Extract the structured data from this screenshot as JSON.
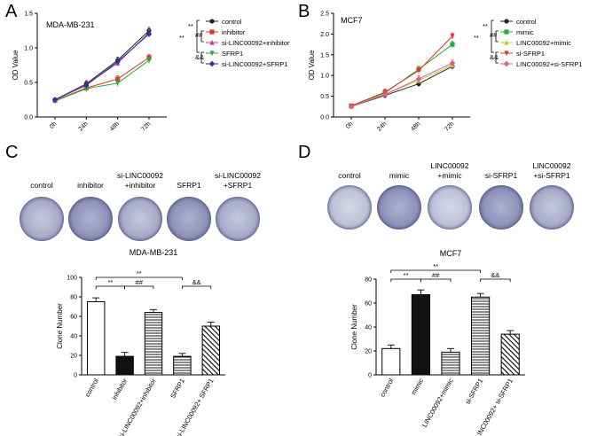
{
  "panels": {
    "A": {
      "letter": "A"
    },
    "B": {
      "letter": "B"
    },
    "C": {
      "letter": "C"
    },
    "D": {
      "letter": "D"
    }
  },
  "colony_images": {
    "C": [
      "control",
      "inhibitor",
      "si-LINC00092\n+inhibitor",
      "SFRP1",
      "si-LINC00092\n+SFRP1"
    ],
    "D": [
      "control",
      "mimic",
      "LINC00092\n+mimic",
      "si-SFRP1",
      "LINC00092\n+si-SFRP1"
    ]
  },
  "chart_data": [
    {
      "id": "A",
      "type": "line",
      "title": "MDA-MB-231",
      "xlabel": "",
      "ylabel": "OD Value",
      "categories": [
        "0h",
        "24h",
        "48h",
        "72h"
      ],
      "ylim": [
        0.0,
        1.5
      ],
      "yticks": [
        "0.0",
        "0.5",
        "1.0",
        "1.5"
      ],
      "series": [
        {
          "name": "control",
          "color": "#222222",
          "values": [
            0.25,
            0.48,
            0.82,
            1.25
          ]
        },
        {
          "name": "inhibitor",
          "color": "#e0352b",
          "values": [
            0.24,
            0.42,
            0.55,
            0.86
          ]
        },
        {
          "name": "si-LINC00092+inhibitor",
          "color": "#c0399f",
          "values": [
            0.25,
            0.47,
            0.78,
            1.22
          ]
        },
        {
          "name": "SFRP1",
          "color": "#2aa836",
          "values": [
            0.23,
            0.41,
            0.49,
            0.82
          ]
        },
        {
          "name": "si-LINC00092+SFRP1",
          "color": "#2c2f9c",
          "values": [
            0.25,
            0.46,
            0.8,
            1.2
          ]
        }
      ],
      "annotations": [
        "**",
        "##",
        "**",
        "&&"
      ]
    },
    {
      "id": "B",
      "type": "line",
      "title": "MCF7",
      "xlabel": "",
      "ylabel": "OD Value",
      "categories": [
        "0h",
        "24h",
        "48h",
        "72h"
      ],
      "ylim": [
        0.0,
        2.5
      ],
      "yticks": [
        "0.0",
        "0.5",
        "1.0",
        "1.5",
        "2.0",
        "2.5"
      ],
      "series": [
        {
          "name": "control",
          "color": "#222222",
          "values": [
            0.25,
            0.52,
            0.8,
            1.22
          ]
        },
        {
          "name": "mimic",
          "color": "#2aa836",
          "values": [
            0.26,
            0.58,
            1.15,
            1.75
          ]
        },
        {
          "name": "LINC00092+mimic",
          "color": "#b8cf3a",
          "values": [
            0.25,
            0.55,
            0.88,
            1.25
          ]
        },
        {
          "name": "si-SFRP1",
          "color": "#e0352b",
          "values": [
            0.27,
            0.6,
            1.12,
            1.95
          ]
        },
        {
          "name": "LINC00092+si-SFRP1",
          "color": "#e05a8e",
          "values": [
            0.25,
            0.54,
            0.92,
            1.3
          ]
        }
      ],
      "annotations": [
        "**",
        "##",
        "**",
        "&&"
      ]
    },
    {
      "id": "C",
      "type": "bar",
      "title": "MDA-MB-231",
      "xlabel": "",
      "ylabel": "Clone Number",
      "categories": [
        "control",
        "inhibitor",
        "si-LINC00092+inhibitor",
        "SFRP1",
        "si-LINC00092+ SFRP1"
      ],
      "values": [
        75,
        19,
        64,
        19,
        50
      ],
      "errors": [
        4,
        4,
        3,
        3,
        4
      ],
      "fills": [
        "white",
        "black",
        "hlines",
        "hlines",
        "diag"
      ],
      "ylim": [
        0,
        100
      ],
      "yticks": [
        "0",
        "20",
        "40",
        "60",
        "80",
        "100"
      ],
      "annotations": [
        "**",
        "**",
        "##",
        "&&"
      ]
    },
    {
      "id": "D",
      "type": "bar",
      "title": "MCF7",
      "xlabel": "",
      "ylabel": "Clone Number",
      "categories": [
        "control",
        "mimic",
        "LINC00092+mimic",
        "si-SFRP1",
        "LINC00092+ si-SFRP1"
      ],
      "values": [
        22,
        67,
        19,
        65,
        34
      ],
      "errors": [
        3,
        4,
        3,
        3,
        3
      ],
      "fills": [
        "white",
        "black",
        "hlines",
        "hlines",
        "diag"
      ],
      "ylim": [
        0,
        80
      ],
      "yticks": [
        "0",
        "20",
        "40",
        "60",
        "80"
      ],
      "annotations": [
        "**",
        "**",
        "##",
        "&&"
      ]
    }
  ]
}
